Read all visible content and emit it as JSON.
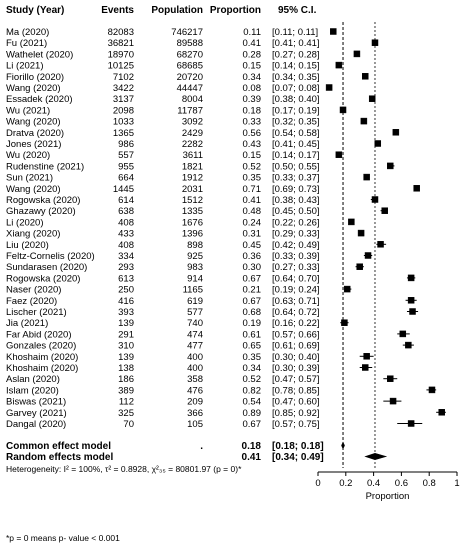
{
  "headers": {
    "study": "Study (Year)",
    "events": "Events",
    "population": "Population",
    "proportion": "Proportion",
    "ci": "95% C.I."
  },
  "chart_data": {
    "type": "forest",
    "xlabel": "Proportion",
    "xlim": [
      0,
      1
    ],
    "xticks": [
      "0",
      "0.2",
      "0.4",
      "0.6",
      "0.8",
      "1"
    ],
    "reference_line": 0.18,
    "dashed_line": 0.41,
    "studies": [
      {
        "label": "Ma (2020)",
        "events": "82083",
        "population": "746217",
        "prop_text": "0.11",
        "ci_text": "[0.11; 0.11]",
        "est": 0.11,
        "lo": 0.11,
        "hi": 0.11
      },
      {
        "label": "Fu (2021)",
        "events": "36821",
        "population": "89588",
        "prop_text": "0.41",
        "ci_text": "[0.41; 0.41]",
        "est": 0.41,
        "lo": 0.41,
        "hi": 0.41
      },
      {
        "label": "Wathelet (2020)",
        "events": "18970",
        "population": "68270",
        "prop_text": "0.28",
        "ci_text": "[0.27; 0.28]",
        "est": 0.28,
        "lo": 0.27,
        "hi": 0.28
      },
      {
        "label": "Li (2021)",
        "events": "10125",
        "population": "68685",
        "prop_text": "0.15",
        "ci_text": "[0.14; 0.15]",
        "est": 0.15,
        "lo": 0.14,
        "hi": 0.15
      },
      {
        "label": "Fiorillo (2020)",
        "events": "7102",
        "population": "20720",
        "prop_text": "0.34",
        "ci_text": "[0.34; 0.35]",
        "est": 0.34,
        "lo": 0.34,
        "hi": 0.35
      },
      {
        "label": "Wang (2020)",
        "events": "3422",
        "population": "44447",
        "prop_text": "0.08",
        "ci_text": "[0.07; 0.08]",
        "est": 0.08,
        "lo": 0.07,
        "hi": 0.08
      },
      {
        "label": "Essadek (2020)",
        "events": "3137",
        "population": "8004",
        "prop_text": "0.39",
        "ci_text": "[0.38; 0.40]",
        "est": 0.39,
        "lo": 0.38,
        "hi": 0.4
      },
      {
        "label": "Wu (2021)",
        "events": "2098",
        "population": "11787",
        "prop_text": "0.18",
        "ci_text": "[0.17; 0.19]",
        "est": 0.18,
        "lo": 0.17,
        "hi": 0.19
      },
      {
        "label": "Wang (2020)",
        "events": "1033",
        "population": "3092",
        "prop_text": "0.33",
        "ci_text": "[0.32; 0.35]",
        "est": 0.33,
        "lo": 0.32,
        "hi": 0.35
      },
      {
        "label": "Dratva (2020)",
        "events": "1365",
        "population": "2429",
        "prop_text": "0.56",
        "ci_text": "[0.54; 0.58]",
        "est": 0.56,
        "lo": 0.54,
        "hi": 0.58
      },
      {
        "label": "Jones (2021)",
        "events": "986",
        "population": "2282",
        "prop_text": "0.43",
        "ci_text": "[0.41; 0.45]",
        "est": 0.43,
        "lo": 0.41,
        "hi": 0.45
      },
      {
        "label": "Wu (2020)",
        "events": "557",
        "population": "3611",
        "prop_text": "0.15",
        "ci_text": "[0.14; 0.17]",
        "est": 0.15,
        "lo": 0.14,
        "hi": 0.17
      },
      {
        "label": "Rudenstine (2021)",
        "events": "955",
        "population": "1821",
        "prop_text": "0.52",
        "ci_text": "[0.50; 0.55]",
        "est": 0.52,
        "lo": 0.5,
        "hi": 0.55
      },
      {
        "label": "Sun (2021)",
        "events": "664",
        "population": "1912",
        "prop_text": "0.35",
        "ci_text": "[0.33; 0.37]",
        "est": 0.35,
        "lo": 0.33,
        "hi": 0.37
      },
      {
        "label": "Wang (2020)",
        "events": "1445",
        "population": "2031",
        "prop_text": "0.71",
        "ci_text": "[0.69; 0.73]",
        "est": 0.71,
        "lo": 0.69,
        "hi": 0.73
      },
      {
        "label": "Rogowska (2020)",
        "events": "614",
        "population": "1512",
        "prop_text": "0.41",
        "ci_text": "[0.38; 0.43]",
        "est": 0.41,
        "lo": 0.38,
        "hi": 0.43
      },
      {
        "label": "Ghazawy (2020)",
        "events": "638",
        "population": "1335",
        "prop_text": "0.48",
        "ci_text": "[0.45; 0.50]",
        "est": 0.48,
        "lo": 0.45,
        "hi": 0.5
      },
      {
        "label": "Li (2020)",
        "events": "408",
        "population": "1676",
        "prop_text": "0.24",
        "ci_text": "[0.22; 0.26]",
        "est": 0.24,
        "lo": 0.22,
        "hi": 0.26
      },
      {
        "label": "Xiang (2020)",
        "events": "433",
        "population": "1396",
        "prop_text": "0.31",
        "ci_text": "[0.29; 0.33]",
        "est": 0.31,
        "lo": 0.29,
        "hi": 0.33
      },
      {
        "label": "Liu (2020)",
        "events": "408",
        "population": "898",
        "prop_text": "0.45",
        "ci_text": "[0.42; 0.49]",
        "est": 0.45,
        "lo": 0.42,
        "hi": 0.49
      },
      {
        "label": "Feltz-Cornelis (2020)",
        "events": "334",
        "population": "925",
        "prop_text": "0.36",
        "ci_text": "[0.33; 0.39]",
        "est": 0.36,
        "lo": 0.33,
        "hi": 0.39
      },
      {
        "label": "Sundarasen (2020)",
        "events": "293",
        "population": "983",
        "prop_text": "0.30",
        "ci_text": "[0.27; 0.33]",
        "est": 0.3,
        "lo": 0.27,
        "hi": 0.33
      },
      {
        "label": "Rogowska (2020)",
        "events": "613",
        "population": "914",
        "prop_text": "0.67",
        "ci_text": "[0.64; 0.70]",
        "est": 0.67,
        "lo": 0.64,
        "hi": 0.7
      },
      {
        "label": "Naser (2020)",
        "events": "250",
        "population": "1165",
        "prop_text": "0.21",
        "ci_text": "[0.19; 0.24]",
        "est": 0.21,
        "lo": 0.19,
        "hi": 0.24
      },
      {
        "label": "Faez (2020)",
        "events": "416",
        "population": "619",
        "prop_text": "0.67",
        "ci_text": "[0.63; 0.71]",
        "est": 0.67,
        "lo": 0.63,
        "hi": 0.71
      },
      {
        "label": "Lischer (2021)",
        "events": "393",
        "population": "577",
        "prop_text": "0.68",
        "ci_text": "[0.64; 0.72]",
        "est": 0.68,
        "lo": 0.64,
        "hi": 0.72
      },
      {
        "label": "Jia (2021)",
        "events": "139",
        "population": "740",
        "prop_text": "0.19",
        "ci_text": "[0.16; 0.22]",
        "est": 0.19,
        "lo": 0.16,
        "hi": 0.22
      },
      {
        "label": "Far Abid (2020)",
        "events": "291",
        "population": "474",
        "prop_text": "0.61",
        "ci_text": "[0.57; 0.66]",
        "est": 0.61,
        "lo": 0.57,
        "hi": 0.66
      },
      {
        "label": "Gonzales (2020)",
        "events": "310",
        "population": "477",
        "prop_text": "0.65",
        "ci_text": "[0.61; 0.69]",
        "est": 0.65,
        "lo": 0.61,
        "hi": 0.69
      },
      {
        "label": "Khoshaim (2020)",
        "events": "139",
        "population": "400",
        "prop_text": "0.35",
        "ci_text": "[0.30; 0.40]",
        "est": 0.35,
        "lo": 0.3,
        "hi": 0.4
      },
      {
        "label": "Khoshaim (2020)",
        "events": "138",
        "population": "400",
        "prop_text": "0.34",
        "ci_text": "[0.30; 0.39]",
        "est": 0.34,
        "lo": 0.3,
        "hi": 0.39
      },
      {
        "label": "Aslan (2020)",
        "events": "186",
        "population": "358",
        "prop_text": "0.52",
        "ci_text": "[0.47; 0.57]",
        "est": 0.52,
        "lo": 0.47,
        "hi": 0.57
      },
      {
        "label": "Islam (2020)",
        "events": "389",
        "population": "476",
        "prop_text": "0.82",
        "ci_text": "[0.78; 0.85]",
        "est": 0.82,
        "lo": 0.78,
        "hi": 0.85
      },
      {
        "label": "Biswas (2021)",
        "events": "112",
        "population": "209",
        "prop_text": "0.54",
        "ci_text": "[0.47; 0.60]",
        "est": 0.54,
        "lo": 0.47,
        "hi": 0.6
      },
      {
        "label": "Garvey (2021)",
        "events": "325",
        "population": "366",
        "prop_text": "0.89",
        "ci_text": "[0.85; 0.92]",
        "est": 0.89,
        "lo": 0.85,
        "hi": 0.92
      },
      {
        "label": "Dangal (2020)",
        "events": "70",
        "population": "105",
        "prop_text": "0.67",
        "ci_text": "[0.57; 0.75]",
        "est": 0.67,
        "lo": 0.57,
        "hi": 0.75
      }
    ],
    "summaries": [
      {
        "label": "Common effect model",
        "population": ".",
        "prop_text": "0.18",
        "ci_text": "[0.18; 0.18]",
        "est": 0.18,
        "lo": 0.18,
        "hi": 0.18
      },
      {
        "label": "Random effects model",
        "population": "",
        "prop_text": "0.41",
        "ci_text": "[0.34; 0.49]",
        "est": 0.41,
        "lo": 0.34,
        "hi": 0.49
      }
    ],
    "heterogeneity": "Heterogeneity: I² = 100%, τ² = 0.8928, χ²₃₅ = 80801.97 (p = 0)*"
  },
  "footnote": "*p = 0 means p- value < 0.001"
}
